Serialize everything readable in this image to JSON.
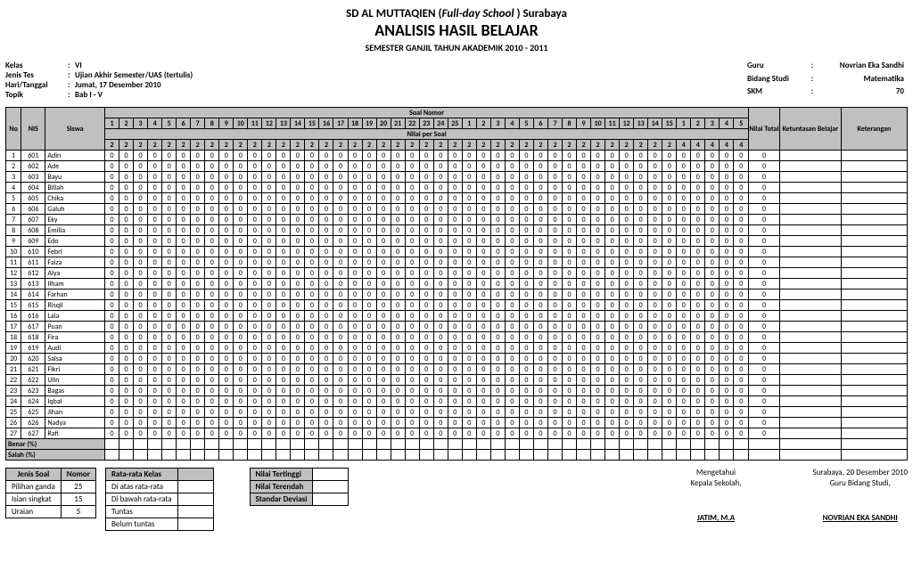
{
  "header": {
    "school_prefix": "SD AL MUTTAQIEN (",
    "school_italic": "Full-day School",
    "school_suffix": " ) Surabaya",
    "title": "ANALISIS HASIL BELAJAR",
    "subtitle": "SEMESTER GANJIL TAHUN AKADEMIK 2010 - 2011"
  },
  "meta_left": {
    "kelas_label": "Kelas",
    "kelas": "VI",
    "jenis_label": "Jenis Tes",
    "jenis": "Ujian Akhir Semester/UAS (tertulis)",
    "hari_label": "Hari/Tanggal",
    "hari": "Jumat, 17 Desember 2010",
    "topik_label": "Topik",
    "topik": "Bab I - V"
  },
  "meta_right": {
    "guru_label": "Guru",
    "guru": "Novrian Eka Sandhi",
    "bidang_label": "Bidang Studi",
    "bidang": "Matematika",
    "skm_label": "SKM",
    "skm": "70"
  },
  "table_headers": {
    "no": "No",
    "nis": "NIS",
    "siswa": "Siswa",
    "soal_nomor": "Soal Nomor",
    "nilai_per_soal": "Nilai per Soal",
    "nilai_total": "Nilai Total",
    "ketuntasan": "Ketuntasan Belajar",
    "keterangan": "Keterangan",
    "group1_cols": [
      "1",
      "2",
      "3",
      "4",
      "5",
      "6",
      "7",
      "8",
      "9",
      "10",
      "11",
      "12",
      "13",
      "14",
      "15",
      "16",
      "17",
      "18",
      "19",
      "20",
      "21",
      "22",
      "23",
      "24",
      "25"
    ],
    "group2_cols": [
      "1",
      "2",
      "3",
      "4",
      "5",
      "6",
      "7",
      "8",
      "9",
      "10",
      "11",
      "12",
      "13",
      "14",
      "15"
    ],
    "group3_cols": [
      "1",
      "2",
      "3",
      "4",
      "5"
    ],
    "nilai_row_g1": [
      "2",
      "2",
      "2",
      "2",
      "2",
      "2",
      "2",
      "2",
      "2",
      "2",
      "2",
      "2",
      "2",
      "2",
      "2",
      "2",
      "2",
      "2",
      "2",
      "2",
      "2",
      "2",
      "2",
      "2",
      "2"
    ],
    "nilai_row_g2": [
      "2",
      "2",
      "2",
      "2",
      "2",
      "2",
      "2",
      "2",
      "2",
      "2",
      "2",
      "2",
      "2",
      "2",
      "2"
    ],
    "nilai_row_g3": [
      "4",
      "4",
      "4",
      "4",
      "4"
    ],
    "benar": "Benar (%)",
    "salah": "Salah (%)"
  },
  "students": [
    {
      "no": "1",
      "nis": "601",
      "name": "Adin"
    },
    {
      "no": "2",
      "nis": "602",
      "name": "Ade"
    },
    {
      "no": "3",
      "nis": "603",
      "name": "Bayu"
    },
    {
      "no": "4",
      "nis": "604",
      "name": "Billah"
    },
    {
      "no": "5",
      "nis": "605",
      "name": "Chika"
    },
    {
      "no": "6",
      "nis": "606",
      "name": "Galuh"
    },
    {
      "no": "7",
      "nis": "607",
      "name": "Eky"
    },
    {
      "no": "8",
      "nis": "608",
      "name": "Emilia"
    },
    {
      "no": "9",
      "nis": "609",
      "name": "Edo"
    },
    {
      "no": "10",
      "nis": "610",
      "name": "Febri"
    },
    {
      "no": "11",
      "nis": "611",
      "name": "Faiza"
    },
    {
      "no": "12",
      "nis": "612",
      "name": "Alya"
    },
    {
      "no": "13",
      "nis": "613",
      "name": "Ilham"
    },
    {
      "no": "14",
      "nis": "614",
      "name": "Farhan"
    },
    {
      "no": "15",
      "nis": "615",
      "name": "Risqil"
    },
    {
      "no": "16",
      "nis": "616",
      "name": "Lala"
    },
    {
      "no": "17",
      "nis": "617",
      "name": "Puan"
    },
    {
      "no": "18",
      "nis": "618",
      "name": "Fira"
    },
    {
      "no": "19",
      "nis": "619",
      "name": "Audi"
    },
    {
      "no": "20",
      "nis": "620",
      "name": "Salsa"
    },
    {
      "no": "21",
      "nis": "621",
      "name": "Fikri"
    },
    {
      "no": "22",
      "nis": "622",
      "name": "Ulin"
    },
    {
      "no": "23",
      "nis": "623",
      "name": "Bagas"
    },
    {
      "no": "24",
      "nis": "624",
      "name": "Iqbal"
    },
    {
      "no": "25",
      "nis": "625",
      "name": "Jihan"
    },
    {
      "no": "26",
      "nis": "626",
      "name": "Nadya"
    },
    {
      "no": "27",
      "nis": "627",
      "name": "Rafi"
    }
  ],
  "cell_value": "0",
  "total_value": "0",
  "footer": {
    "jenis_soal_hdr": "Jenis Soal",
    "nomor_hdr": "Nomor",
    "jenis_soal": [
      {
        "label": "Pilihan ganda",
        "val": "25"
      },
      {
        "label": "Isian singkat",
        "val": "15"
      },
      {
        "label": "Uraian",
        "val": "5"
      }
    ],
    "stats_rows": [
      "Rata-rata Kelas",
      "Di atas rata-rata",
      "Di bawah rata-rata",
      "Tuntas",
      "Belum tuntas"
    ],
    "extremes_rows": [
      "Nilai Tertinggi",
      "Nilai Terendah",
      "Standar Deviasi"
    ],
    "sign_left_1": "Mengetahui",
    "sign_left_2": "Kepala Sekolah,",
    "sign_left_name": "JATIM, M.A",
    "sign_right_1": "Surabaya, 20 Desember 2010",
    "sign_right_2": "Guru Bidang Studi,",
    "sign_right_name": "NOVRIAN EKA SANDHI"
  },
  "colors": {
    "header_bg": "#c0c0c0",
    "border": "#000000",
    "text": "#000000",
    "bg": "#ffffff"
  }
}
